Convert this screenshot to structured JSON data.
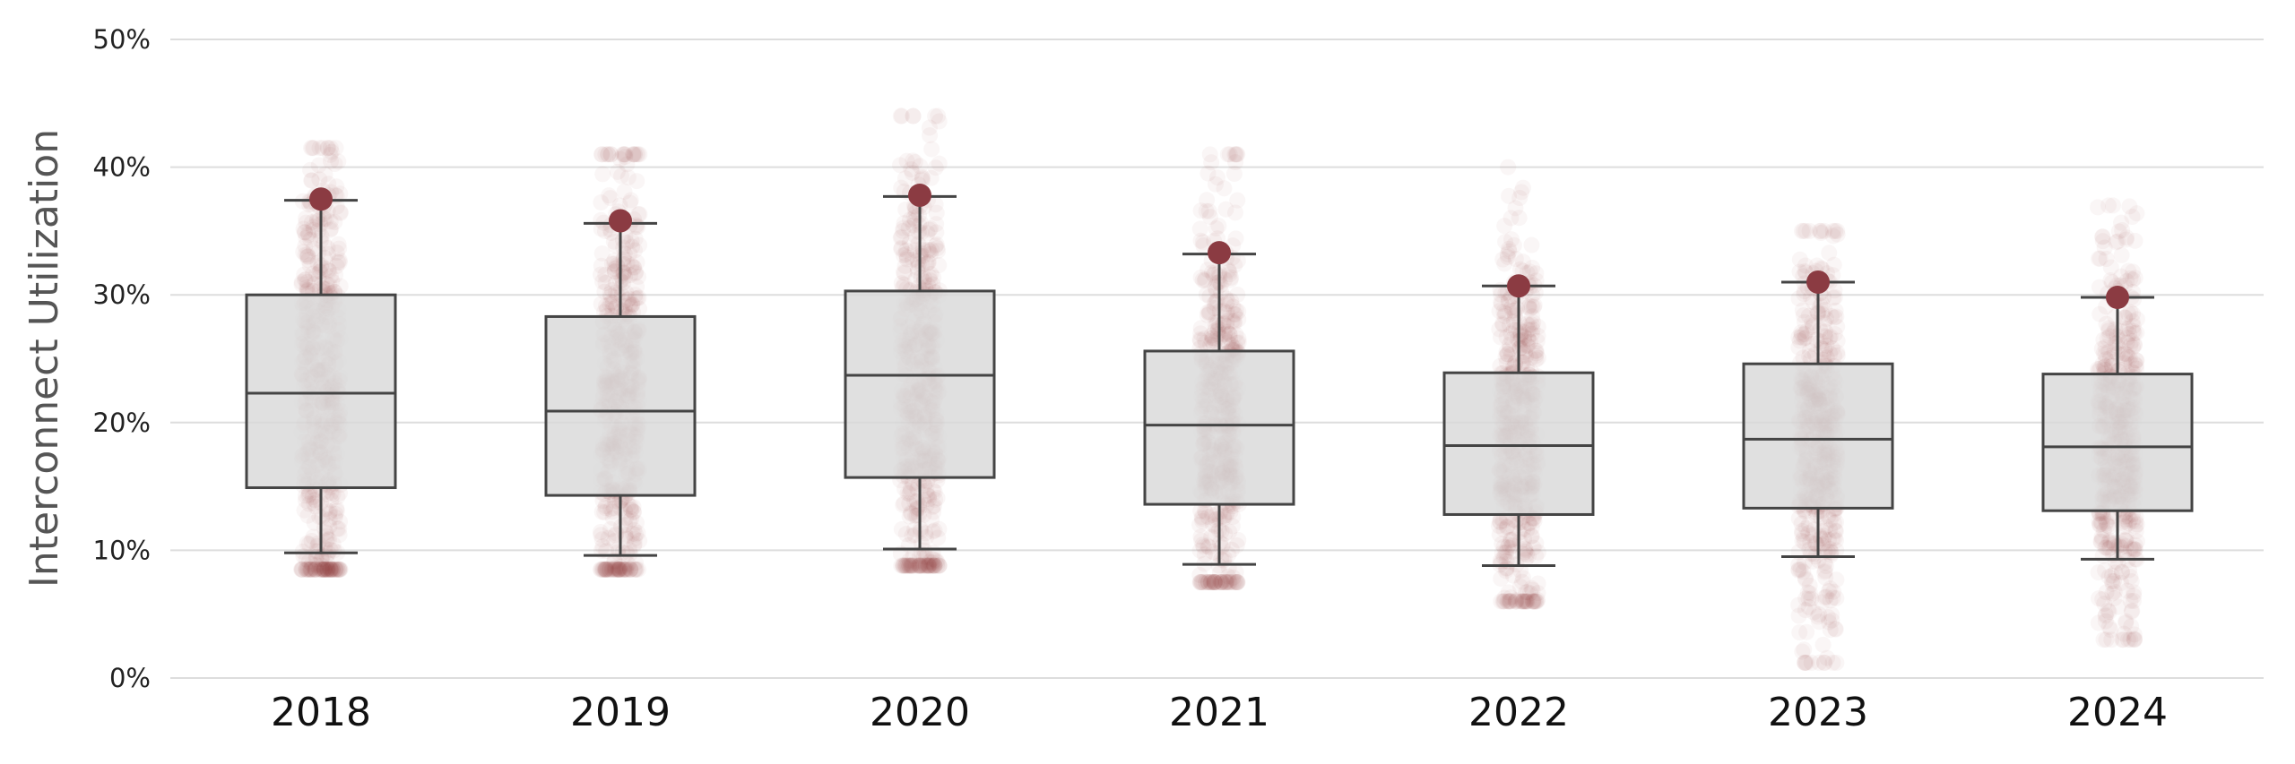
{
  "chart_data": {
    "type": "box",
    "ylabel": "Interconnect Utilization",
    "ylim": [
      0,
      50
    ],
    "y_ticks": [
      {
        "value": 0,
        "label": "0%"
      },
      {
        "value": 10,
        "label": "10%"
      },
      {
        "value": 20,
        "label": "20%"
      },
      {
        "value": 30,
        "label": "30%"
      },
      {
        "value": 40,
        "label": "40%"
      },
      {
        "value": 50,
        "label": "50%"
      }
    ],
    "grid": "horizontal",
    "categories": [
      "2018",
      "2019",
      "2020",
      "2021",
      "2022",
      "2023",
      "2024"
    ],
    "boxes": [
      {
        "category": "2018",
        "whisker_low": 9.8,
        "q1": 14.9,
        "median": 22.3,
        "q3": 30.0,
        "whisker_high": 37.4,
        "highlight": 37.5,
        "point_min": 8.5,
        "point_max": 41.5
      },
      {
        "category": "2019",
        "whisker_low": 9.6,
        "q1": 14.3,
        "median": 20.9,
        "q3": 28.3,
        "whisker_high": 35.6,
        "highlight": 35.8,
        "point_min": 8.5,
        "point_max": 41.0
      },
      {
        "category": "2020",
        "whisker_low": 10.1,
        "q1": 15.7,
        "median": 23.7,
        "q3": 30.3,
        "whisker_high": 37.7,
        "highlight": 37.8,
        "point_min": 8.8,
        "point_max": 44.0
      },
      {
        "category": "2021",
        "whisker_low": 8.9,
        "q1": 13.6,
        "median": 19.8,
        "q3": 25.6,
        "whisker_high": 33.2,
        "highlight": 33.3,
        "point_min": 7.5,
        "point_max": 41.0
      },
      {
        "category": "2022",
        "whisker_low": 8.8,
        "q1": 12.8,
        "median": 18.2,
        "q3": 23.9,
        "whisker_high": 30.7,
        "highlight": 30.7,
        "point_min": 6.0,
        "point_max": 40.0
      },
      {
        "category": "2023",
        "whisker_low": 9.5,
        "q1": 13.3,
        "median": 18.7,
        "q3": 24.6,
        "whisker_high": 31.0,
        "highlight": 31.0,
        "point_min": 1.2,
        "point_max": 35.0
      },
      {
        "category": "2024",
        "whisker_low": 9.3,
        "q1": 13.1,
        "median": 18.1,
        "q3": 23.8,
        "whisker_high": 29.8,
        "highlight": 29.8,
        "point_min": 3.0,
        "point_max": 37.0
      }
    ],
    "colors": {
      "box_fill": "#d9d9d9",
      "box_stroke": "#444444",
      "points": "#8b2e35",
      "highlight_marker": "#8b3b42",
      "grid": "#dddddd"
    }
  }
}
